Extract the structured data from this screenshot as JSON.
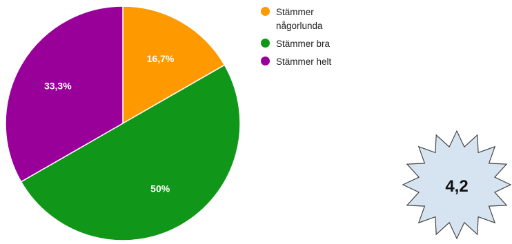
{
  "chart_data": {
    "type": "pie",
    "categories": [
      "Stämmer någorlunda",
      "Stämmer bra",
      "Stämmer helt"
    ],
    "values": [
      16.7,
      50,
      33.3
    ],
    "data_labels": [
      "16,7%",
      "50%",
      "33,3%"
    ],
    "colors": [
      "#ff9900",
      "#109618",
      "#990099"
    ],
    "legend_position": "right",
    "start_angle_deg": 0,
    "direction": "clockwise"
  },
  "badge": {
    "value": "4,2",
    "shape": "star-burst",
    "fill": "#d6e4f2",
    "stroke": "#444444"
  }
}
